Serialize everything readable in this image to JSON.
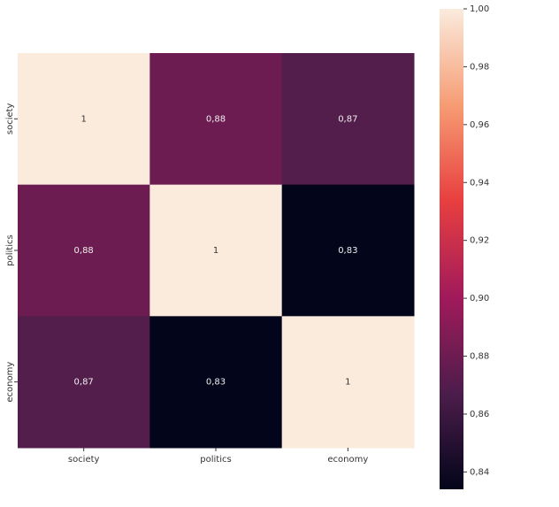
{
  "chart_data": {
    "type": "heatmap",
    "categories": [
      "society",
      "politics",
      "economy"
    ],
    "values": [
      [
        1,
        0.88,
        0.87
      ],
      [
        0.88,
        1,
        0.83
      ],
      [
        0.87,
        0.83,
        1
      ]
    ],
    "value_labels": [
      [
        "1",
        "0,88",
        "0,87"
      ],
      [
        "0,88",
        "1",
        "0,83"
      ],
      [
        "0,87",
        "0,83",
        "1"
      ]
    ],
    "colormap": [
      "#03051a",
      "#4c1d4b",
      "#a11a5b",
      "#e83f3f",
      "#f69c73",
      "#faebdd"
    ],
    "zlim": [
      0.834,
      1
    ],
    "zticks": [
      {
        "value": 0.84,
        "label": "0,84"
      },
      {
        "value": 0.86,
        "label": "0,86"
      },
      {
        "value": 0.88,
        "label": "0,88"
      },
      {
        "value": 0.9,
        "label": "0,90"
      },
      {
        "value": 0.92,
        "label": "0,92"
      },
      {
        "value": 0.94,
        "label": "0,94"
      },
      {
        "value": 0.96,
        "label": "0,96"
      },
      {
        "value": 0.98,
        "label": "0,98"
      },
      {
        "value": 1,
        "label": "1,00"
      }
    ]
  }
}
